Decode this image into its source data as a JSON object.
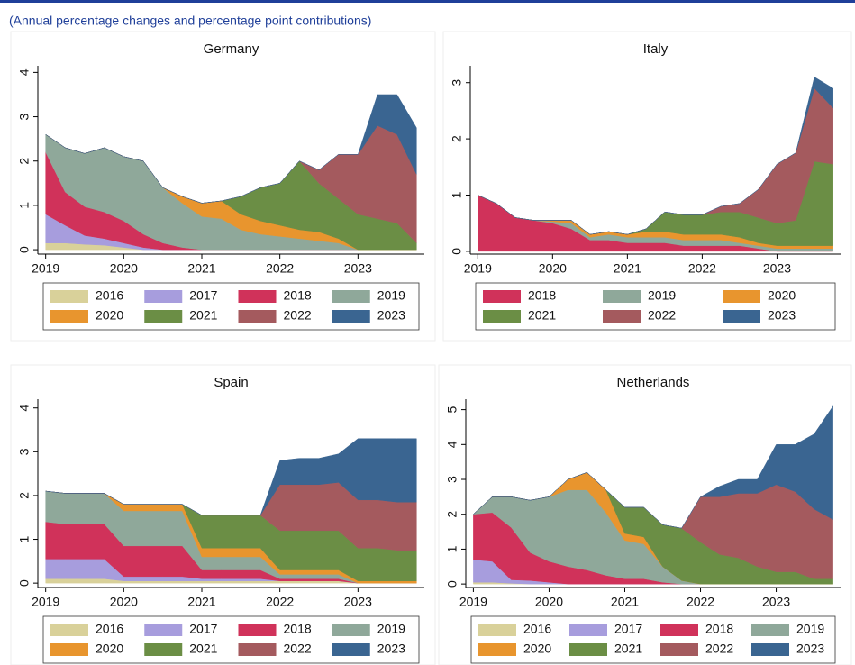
{
  "header": {
    "subtitle": "(Annual percentage changes and percentage point contributions)"
  },
  "chart_data": [
    {
      "type": "area",
      "title": "Germany",
      "x": [
        2019,
        2019.25,
        2019.5,
        2019.75,
        2020,
        2020.25,
        2020.5,
        2020.75,
        2021,
        2021.25,
        2021.5,
        2021.75,
        2022,
        2022.25,
        2022.5,
        2022.75,
        2023,
        2023.25,
        2023.5,
        2023.75
      ],
      "xlim": [
        2018.9,
        2023.85
      ],
      "xticks": [
        2019,
        2020,
        2021,
        2022,
        2023
      ],
      "ylim": [
        -0.1,
        4.15
      ],
      "yticks": [
        0,
        1,
        2,
        3,
        4
      ],
      "series": [
        {
          "name": "2016",
          "color": "#d9d19a",
          "values": [
            0.15,
            0.15,
            0.12,
            0.1,
            0.05,
            0,
            0,
            0,
            0,
            0,
            0,
            0,
            0,
            0,
            0,
            0,
            0,
            0,
            0,
            0
          ]
        },
        {
          "name": "2017",
          "color": "#a79ddd",
          "values": [
            0.65,
            0.4,
            0.2,
            0.15,
            0.1,
            0.05,
            0,
            0,
            0,
            0,
            0,
            0,
            0,
            0,
            0,
            0,
            0,
            0,
            0,
            0
          ]
        },
        {
          "name": "2018",
          "color": "#d0325a",
          "values": [
            1.4,
            0.75,
            0.65,
            0.6,
            0.5,
            0.3,
            0.15,
            0.05,
            0,
            0,
            0,
            0,
            0,
            0,
            0,
            0,
            0,
            0,
            0,
            0
          ]
        },
        {
          "name": "2019",
          "color": "#8fa89a",
          "values": [
            0.4,
            1.0,
            1.2,
            1.45,
            1.45,
            1.65,
            1.25,
            1.0,
            0.75,
            0.7,
            0.45,
            0.35,
            0.3,
            0.25,
            0.2,
            0.15,
            0,
            0,
            0,
            0
          ]
        },
        {
          "name": "2020",
          "color": "#e8952e",
          "values": [
            0,
            0,
            0,
            0,
            0,
            0,
            0,
            0.15,
            0.3,
            0.4,
            0.35,
            0.3,
            0.25,
            0.2,
            0.2,
            0.1,
            0,
            0,
            0,
            0
          ]
        },
        {
          "name": "2021",
          "color": "#6b8e45",
          "values": [
            0,
            0,
            0,
            0,
            0,
            0,
            0,
            0,
            0,
            0,
            0.4,
            0.75,
            0.95,
            1.55,
            1.1,
            0.9,
            0.8,
            0.7,
            0.6,
            0.15
          ]
        },
        {
          "name": "2022",
          "color": "#a45a5e",
          "values": [
            0,
            0,
            0,
            0,
            0,
            0,
            0,
            0,
            0,
            0,
            0,
            0,
            0,
            0,
            0.3,
            1.0,
            1.35,
            2.1,
            2.0,
            1.55
          ]
        },
        {
          "name": "2023",
          "color": "#3a6591",
          "values": [
            0,
            0,
            0,
            0,
            0,
            0,
            0,
            0,
            0,
            0,
            0,
            0,
            0,
            0,
            0,
            0,
            0,
            0.7,
            0.9,
            1.05
          ]
        }
      ]
    },
    {
      "type": "area",
      "title": "Italy",
      "x": [
        2019,
        2019.25,
        2019.5,
        2019.75,
        2020,
        2020.25,
        2020.5,
        2020.75,
        2021,
        2021.25,
        2021.5,
        2021.75,
        2022,
        2022.25,
        2022.5,
        2022.75,
        2023,
        2023.25,
        2023.5,
        2023.75
      ],
      "xlim": [
        2018.9,
        2023.85
      ],
      "xticks": [
        2019,
        2020,
        2021,
        2022,
        2023
      ],
      "ylim": [
        -0.05,
        3.3
      ],
      "yticks": [
        0,
        1,
        2,
        3
      ],
      "series": [
        {
          "name": "2018",
          "color": "#d0325a",
          "values": [
            1.0,
            0.85,
            0.6,
            0.55,
            0.5,
            0.4,
            0.2,
            0.2,
            0.15,
            0.15,
            0.15,
            0.1,
            0.1,
            0.1,
            0.1,
            0.05,
            0,
            0,
            0,
            0
          ]
        },
        {
          "name": "2019",
          "color": "#8fa89a",
          "values": [
            0,
            0,
            0,
            0,
            0.03,
            0.1,
            0.05,
            0.1,
            0.1,
            0.1,
            0.1,
            0.1,
            0.1,
            0.1,
            0.05,
            0.05,
            0.05,
            0.05,
            0.05,
            0.05
          ]
        },
        {
          "name": "2020",
          "color": "#e8952e",
          "values": [
            0,
            0,
            0,
            0,
            0.02,
            0.05,
            0.05,
            0.05,
            0.05,
            0.1,
            0.1,
            0.1,
            0.1,
            0.1,
            0.1,
            0.05,
            0.05,
            0.05,
            0.05,
            0.05
          ]
        },
        {
          "name": "2021",
          "color": "#6b8e45",
          "values": [
            0,
            0,
            0,
            0,
            0,
            0,
            0,
            0,
            0,
            0.05,
            0.35,
            0.35,
            0.35,
            0.4,
            0.45,
            0.45,
            0.4,
            0.45,
            1.5,
            1.45
          ]
        },
        {
          "name": "2022",
          "color": "#a45a5e",
          "values": [
            0,
            0,
            0,
            0,
            0,
            0,
            0,
            0,
            0,
            0,
            0,
            0,
            0,
            0.1,
            0.15,
            0.5,
            1.05,
            1.2,
            1.3,
            1.0
          ]
        },
        {
          "name": "2023",
          "color": "#3a6591",
          "values": [
            0,
            0,
            0,
            0,
            0,
            0,
            0,
            0,
            0,
            0,
            0,
            0,
            0,
            0,
            0,
            0,
            0,
            0,
            0.2,
            0.35
          ]
        }
      ]
    },
    {
      "type": "area",
      "title": "Spain",
      "x": [
        2019,
        2019.25,
        2019.5,
        2019.75,
        2020,
        2020.25,
        2020.5,
        2020.75,
        2021,
        2021.25,
        2021.5,
        2021.75,
        2022,
        2022.25,
        2022.5,
        2022.75,
        2023,
        2023.25,
        2023.5,
        2023.75
      ],
      "xlim": [
        2018.9,
        2023.85
      ],
      "xticks": [
        2019,
        2020,
        2021,
        2022,
        2023
      ],
      "ylim": [
        -0.1,
        4.2
      ],
      "yticks": [
        0,
        1,
        2,
        3,
        4
      ],
      "series": [
        {
          "name": "2016",
          "color": "#d9d19a",
          "values": [
            0.1,
            0.1,
            0.1,
            0.1,
            0.05,
            0.05,
            0.05,
            0.05,
            0.05,
            0.05,
            0.05,
            0.05,
            0.05,
            0.05,
            0.05,
            0.05,
            0,
            0,
            0,
            0
          ]
        },
        {
          "name": "2017",
          "color": "#a79ddd",
          "values": [
            0.45,
            0.45,
            0.45,
            0.45,
            0.1,
            0.1,
            0.1,
            0.1,
            0.05,
            0.05,
            0.05,
            0.05,
            0,
            0,
            0,
            0,
            0,
            0,
            0,
            0
          ]
        },
        {
          "name": "2018",
          "color": "#d0325a",
          "values": [
            0.85,
            0.8,
            0.8,
            0.8,
            0.7,
            0.7,
            0.7,
            0.7,
            0.2,
            0.2,
            0.2,
            0.2,
            0.05,
            0.05,
            0.05,
            0.05,
            0,
            0,
            0,
            0
          ]
        },
        {
          "name": "2019",
          "color": "#8fa89a",
          "values": [
            0.7,
            0.7,
            0.7,
            0.7,
            0.8,
            0.8,
            0.8,
            0.8,
            0.3,
            0.3,
            0.3,
            0.3,
            0.1,
            0.1,
            0.1,
            0.1,
            0,
            0,
            0,
            0
          ]
        },
        {
          "name": "2020",
          "color": "#e8952e",
          "values": [
            0,
            0,
            0,
            0,
            0.15,
            0.15,
            0.15,
            0.15,
            0.2,
            0.2,
            0.2,
            0.2,
            0.1,
            0.1,
            0.1,
            0.1,
            0.05,
            0.05,
            0.05,
            0.05
          ]
        },
        {
          "name": "2021",
          "color": "#6b8e45",
          "values": [
            0,
            0,
            0,
            0,
            0,
            0,
            0,
            0,
            0.75,
            0.75,
            0.75,
            0.75,
            0.9,
            0.9,
            0.9,
            0.9,
            0.75,
            0.75,
            0.7,
            0.7
          ]
        },
        {
          "name": "2022",
          "color": "#a45a5e",
          "values": [
            0,
            0,
            0,
            0,
            0,
            0,
            0,
            0,
            0,
            0,
            0,
            0,
            1.05,
            1.05,
            1.05,
            1.1,
            1.1,
            1.1,
            1.1,
            1.1
          ]
        },
        {
          "name": "2023",
          "color": "#3a6591",
          "values": [
            0,
            0,
            0,
            0,
            0,
            0,
            0,
            0,
            0,
            0,
            0,
            0,
            0.55,
            0.6,
            0.6,
            0.65,
            1.4,
            1.4,
            1.45,
            1.45
          ]
        }
      ]
    },
    {
      "type": "area",
      "title": "Netherlands",
      "x": [
        2019,
        2019.25,
        2019.5,
        2019.75,
        2020,
        2020.25,
        2020.5,
        2020.75,
        2021,
        2021.25,
        2021.5,
        2021.75,
        2022,
        2022.25,
        2022.5,
        2022.75,
        2023,
        2023.25,
        2023.5,
        2023.75
      ],
      "xlim": [
        2018.9,
        2023.85
      ],
      "xticks": [
        2019,
        2020,
        2021,
        2022,
        2023
      ],
      "ylim": [
        -0.1,
        5.3
      ],
      "yticks": [
        0,
        1,
        2,
        3,
        4,
        5
      ],
      "series": [
        {
          "name": "2016",
          "color": "#d9d19a",
          "values": [
            0.05,
            0.05,
            0.02,
            0,
            0,
            0,
            0,
            0,
            0,
            0,
            0,
            0,
            0,
            0,
            0,
            0,
            0,
            0,
            0,
            0
          ]
        },
        {
          "name": "2017",
          "color": "#a79ddd",
          "values": [
            0.65,
            0.6,
            0.1,
            0.1,
            0.05,
            0,
            0,
            0,
            0,
            0,
            0,
            0,
            0,
            0,
            0,
            0,
            0,
            0,
            0,
            0
          ]
        },
        {
          "name": "2018",
          "color": "#d0325a",
          "values": [
            1.3,
            1.4,
            1.5,
            0.8,
            0.6,
            0.5,
            0.4,
            0.25,
            0.15,
            0.15,
            0.05,
            0,
            0,
            0,
            0,
            0,
            0,
            0,
            0,
            0
          ]
        },
        {
          "name": "2019",
          "color": "#8fa89a",
          "values": [
            0,
            0.45,
            0.88,
            1.5,
            1.85,
            2.2,
            2.3,
            1.8,
            1.1,
            1.0,
            0.45,
            0.1,
            0,
            0,
            0,
            0,
            0,
            0,
            0,
            0
          ]
        },
        {
          "name": "2020",
          "color": "#e8952e",
          "values": [
            0,
            0,
            0,
            0,
            0,
            0.3,
            0.5,
            0.65,
            0.2,
            0.2,
            0,
            0,
            0,
            0,
            0,
            0,
            0,
            0,
            0,
            0
          ]
        },
        {
          "name": "2021",
          "color": "#6b8e45",
          "values": [
            0,
            0,
            0,
            0,
            0,
            0,
            0,
            0,
            0.75,
            0.85,
            1.2,
            1.5,
            1.2,
            0.85,
            0.75,
            0.5,
            0.35,
            0.35,
            0.15,
            0.15
          ]
        },
        {
          "name": "2022",
          "color": "#a45a5e",
          "values": [
            0,
            0,
            0,
            0,
            0,
            0,
            0,
            0,
            0,
            0,
            0,
            0,
            1.3,
            1.65,
            1.85,
            2.1,
            2.5,
            2.3,
            2.0,
            1.7
          ]
        },
        {
          "name": "2023",
          "color": "#3a6591",
          "values": [
            0,
            0,
            0,
            0,
            0,
            0,
            0,
            0,
            0,
            0,
            0,
            0,
            0,
            0.3,
            0.4,
            0.4,
            1.15,
            1.35,
            2.15,
            3.25
          ]
        }
      ]
    }
  ]
}
